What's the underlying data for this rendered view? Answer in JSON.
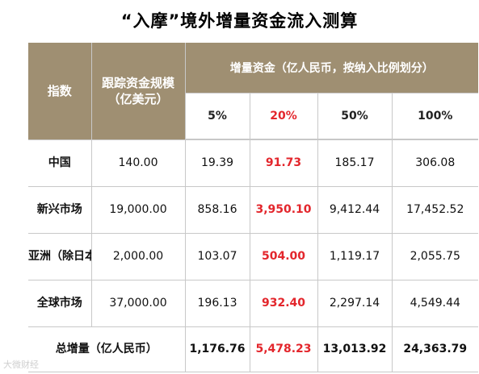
{
  "title": "“入摩”境外增量资金流入测算",
  "headers": {
    "index": "指数",
    "tracking": "跟踪资金规模（亿美元）",
    "increment": "增量资金（亿人民币，按纳入比例划分）",
    "pcts": [
      "5%",
      "20%",
      "50%",
      "100%"
    ]
  },
  "rows": [
    {
      "label": "中国",
      "scale": "140.00",
      "values": [
        "19.39",
        "91.73",
        "185.17",
        "306.08"
      ]
    },
    {
      "label": "新兴市场",
      "scale": "19,000.00",
      "values": [
        "858.16",
        "3,950.10",
        "9,412.44",
        "17,452.52"
      ]
    },
    {
      "label": "亚洲（除日本）",
      "scale": "2,000.00",
      "values": [
        "103.07",
        "504.00",
        "1,119.17",
        "2,055.75"
      ]
    },
    {
      "label": "全球市场",
      "scale": "37,000.00",
      "values": [
        "196.13",
        "932.40",
        "2,297.14",
        "4,549.44"
      ]
    }
  ],
  "total": {
    "label": "总增量（亿人民币）",
    "values": [
      "1,176.76",
      "5,478.23",
      "13,013.92",
      "24,363.79"
    ]
  },
  "highlight_color": "#e3262c",
  "header_color": "#9f8f72",
  "watermark": "大微财经"
}
